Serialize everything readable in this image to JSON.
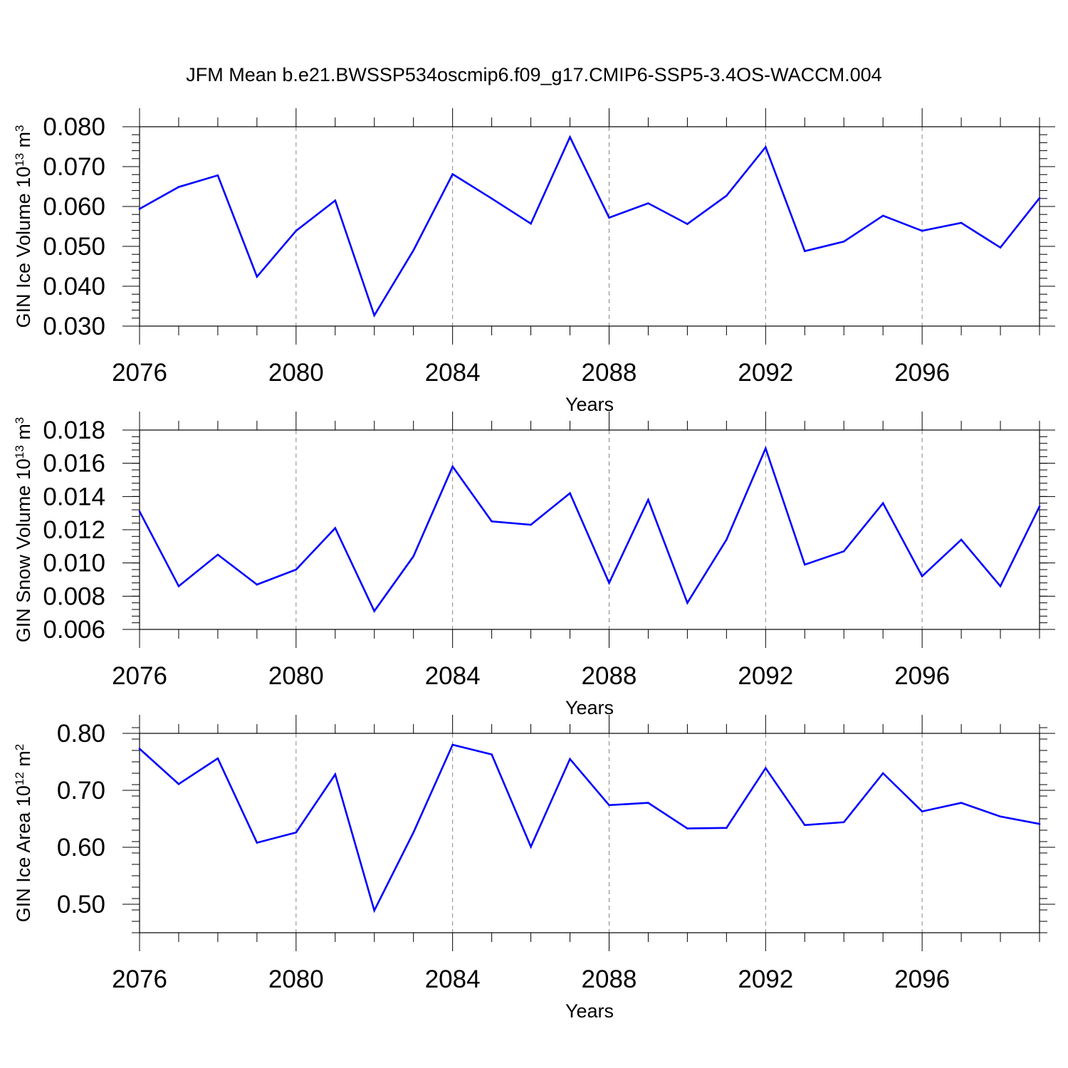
{
  "figure": {
    "title": "JFM Mean b.e21.BWSSP534oscmip6.f09_g17.CMIP6-SSP5-3.4OS-WACCM.004",
    "line_color": "#0000ff",
    "grid_color": "#888888",
    "axis_color": "#000000"
  },
  "chart_data": [
    {
      "type": "line",
      "title": "JFM Mean b.e21.BWSSP534oscmip6.f09_g17.CMIP6-SSP5-3.4OS-WACCM.004",
      "xlabel": "Years",
      "ylabel": "GIN Ice Volume 10",
      "ylabel_exponent": "13",
      "ylabel_suffix": " m",
      "ylabel_suffix_exponent": "3",
      "xlim": [
        2076,
        2099
      ],
      "ylim": [
        0.03,
        0.08
      ],
      "y_ticks": [
        0.03,
        0.04,
        0.05,
        0.06,
        0.07,
        0.08
      ],
      "y_tick_labels": [
        "0.030",
        "0.040",
        "0.050",
        "0.060",
        "0.070",
        "0.080"
      ],
      "y_minor_step": 0.002,
      "x_ticks": [
        2076,
        2080,
        2084,
        2088,
        2092,
        2096
      ],
      "x_tick_labels": [
        "2076",
        "2080",
        "2084",
        "2088",
        "2092",
        "2096"
      ],
      "grid": "vertical dashed at major x ticks",
      "x": [
        2076,
        2077,
        2078,
        2079,
        2080,
        2081,
        2082,
        2083,
        2084,
        2085,
        2086,
        2087,
        2088,
        2089,
        2090,
        2091,
        2092,
        2093,
        2094,
        2095,
        2096,
        2097,
        2098,
        2099
      ],
      "values": [
        0.0594,
        0.0649,
        0.0678,
        0.0424,
        0.0539,
        0.0615,
        0.0327,
        0.049,
        0.0681,
        0.062,
        0.0557,
        0.0774,
        0.0572,
        0.0608,
        0.0556,
        0.0627,
        0.0749,
        0.0488,
        0.0512,
        0.0577,
        0.0539,
        0.0559,
        0.0497,
        0.0621
      ]
    },
    {
      "type": "line",
      "xlabel": "Years",
      "ylabel": "GIN Snow Volume 10",
      "ylabel_exponent": "13",
      "ylabel_suffix": " m",
      "ylabel_suffix_exponent": "3",
      "xlim": [
        2076,
        2099
      ],
      "ylim": [
        0.006,
        0.018
      ],
      "y_ticks": [
        0.006,
        0.008,
        0.01,
        0.012,
        0.014,
        0.016,
        0.018
      ],
      "y_tick_labels": [
        "0.006",
        "0.008",
        "0.010",
        "0.012",
        "0.014",
        "0.016",
        "0.018"
      ],
      "y_minor_step": 0.0004,
      "x_ticks": [
        2076,
        2080,
        2084,
        2088,
        2092,
        2096
      ],
      "x_tick_labels": [
        "2076",
        "2080",
        "2084",
        "2088",
        "2092",
        "2096"
      ],
      "grid": "vertical dashed at major x ticks",
      "x": [
        2076,
        2077,
        2078,
        2079,
        2080,
        2081,
        2082,
        2083,
        2084,
        2085,
        2086,
        2087,
        2088,
        2089,
        2090,
        2091,
        2092,
        2093,
        2094,
        2095,
        2096,
        2097,
        2098,
        2099
      ],
      "values": [
        0.0131,
        0.0086,
        0.0105,
        0.0087,
        0.0096,
        0.0121,
        0.0071,
        0.0104,
        0.0158,
        0.0125,
        0.0123,
        0.0142,
        0.0088,
        0.0138,
        0.0076,
        0.0114,
        0.0169,
        0.0099,
        0.0107,
        0.0136,
        0.0092,
        0.0114,
        0.0086,
        0.0134
      ]
    },
    {
      "type": "line",
      "xlabel": "Years",
      "ylabel": "GIN Ice Area 10",
      "ylabel_exponent": "12",
      "ylabel_suffix": " m",
      "ylabel_suffix_exponent": "2",
      "xlim": [
        2076,
        2099
      ],
      "ylim": [
        0.45,
        0.8
      ],
      "y_ticks": [
        0.5,
        0.6,
        0.7,
        0.8
      ],
      "y_tick_labels": [
        "0.50",
        "0.60",
        "0.70",
        "0.80"
      ],
      "y_minor_step": 0.02,
      "x_ticks": [
        2076,
        2080,
        2084,
        2088,
        2092,
        2096
      ],
      "x_tick_labels": [
        "2076",
        "2080",
        "2084",
        "2088",
        "2092",
        "2096"
      ],
      "grid": "vertical dashed at major x ticks",
      "x": [
        2076,
        2077,
        2078,
        2079,
        2080,
        2081,
        2082,
        2083,
        2084,
        2085,
        2086,
        2087,
        2088,
        2089,
        2090,
        2091,
        2092,
        2093,
        2094,
        2095,
        2096,
        2097,
        2098,
        2099
      ],
      "values": [
        0.773,
        0.711,
        0.756,
        0.608,
        0.626,
        0.728,
        0.489,
        0.626,
        0.78,
        0.763,
        0.601,
        0.755,
        0.674,
        0.678,
        0.633,
        0.634,
        0.739,
        0.639,
        0.644,
        0.73,
        0.663,
        0.678,
        0.654,
        0.641
      ]
    }
  ]
}
